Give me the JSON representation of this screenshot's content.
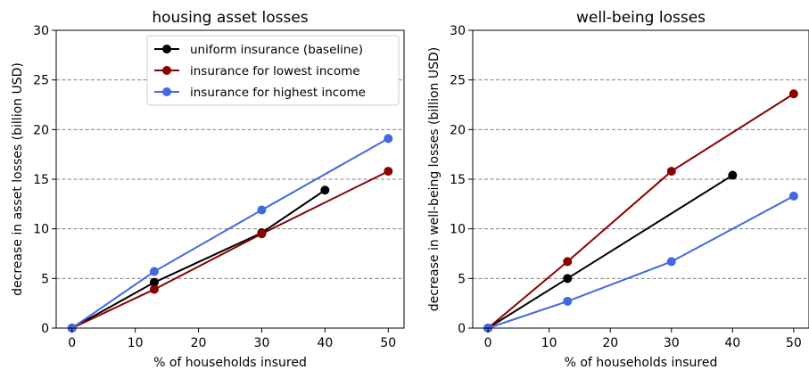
{
  "chart_data": [
    {
      "type": "line",
      "title": "housing asset losses",
      "xlabel": "% of households insured",
      "ylabel": "decrease in asset losses (billion USD)",
      "xlim": [
        -2.5,
        52.5
      ],
      "ylim": [
        0,
        30
      ],
      "xticks": [
        "0",
        "10",
        "20",
        "30",
        "40",
        "50"
      ],
      "yticks": [
        "0",
        "5",
        "10",
        "15",
        "20",
        "25",
        "30"
      ],
      "grid": "horizontal dashed",
      "legend": "top-right",
      "series": [
        {
          "name": "uniform insurance (baseline)",
          "color": "#000000",
          "x": [
            0,
            13,
            30,
            40
          ],
          "y": [
            0,
            4.6,
            9.6,
            13.9
          ]
        },
        {
          "name": "insurance for lowest income",
          "color": "#8b0000",
          "x": [
            0,
            13,
            30,
            50
          ],
          "y": [
            0,
            3.9,
            9.5,
            15.8
          ]
        },
        {
          "name": "insurance for highest income",
          "color": "#4169e1",
          "x": [
            0,
            13,
            30,
            50
          ],
          "y": [
            0,
            5.7,
            11.9,
            19.1
          ]
        }
      ]
    },
    {
      "type": "line",
      "title": "well-being losses",
      "xlabel": "% of households insured",
      "ylabel": "decrease in well-being losses (billion USD)",
      "xlim": [
        -2.5,
        52.5
      ],
      "ylim": [
        0,
        30
      ],
      "xticks": [
        "0",
        "10",
        "20",
        "30",
        "40",
        "50"
      ],
      "yticks": [
        "0",
        "5",
        "10",
        "15",
        "20",
        "25",
        "30"
      ],
      "grid": "horizontal dashed",
      "series": [
        {
          "name": "uniform insurance (baseline)",
          "color": "#000000",
          "x": [
            0,
            13,
            40
          ],
          "y": [
            0,
            5.0,
            15.4
          ]
        },
        {
          "name": "insurance for lowest income",
          "color": "#8b0000",
          "x": [
            0,
            13,
            30,
            50
          ],
          "y": [
            0,
            6.7,
            15.8,
            23.6
          ]
        },
        {
          "name": "insurance for highest income",
          "color": "#4169e1",
          "x": [
            0,
            13,
            30,
            50
          ],
          "y": [
            0,
            2.7,
            6.7,
            13.3
          ]
        }
      ]
    }
  ]
}
